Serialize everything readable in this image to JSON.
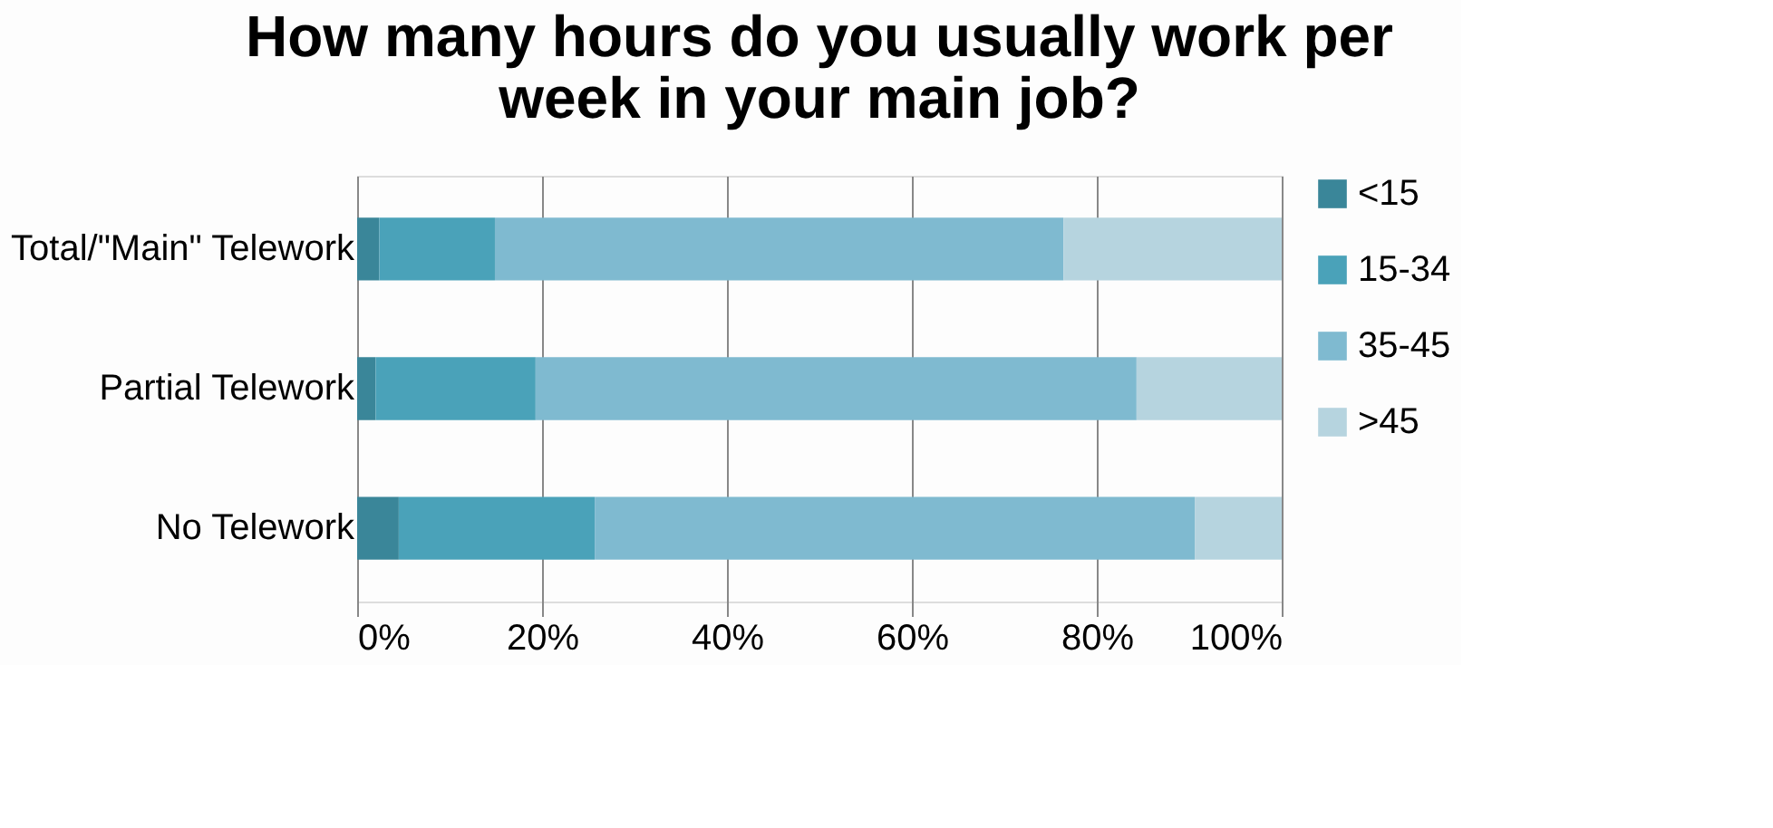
{
  "chart_data": {
    "type": "bar",
    "orientation": "horizontal",
    "stacked": true,
    "title": [
      "How many hours do you usually work per",
      "week in your main job?"
    ],
    "categories": [
      "Total/\"Main\" Telework",
      "Partial Telework",
      "No Telework"
    ],
    "series": [
      {
        "name": "<15",
        "color": "#3a8699",
        "values": [
          2.4,
          2.0,
          4.5
        ]
      },
      {
        "name": "15-34",
        "color": "#4aa2b9",
        "values": [
          12.5,
          17.3,
          21.2
        ]
      },
      {
        "name": "35-45",
        "color": "#7fbad0",
        "values": [
          61.5,
          65.0,
          64.9
        ]
      },
      {
        "name": ">45",
        "color": "#b6d4df",
        "values": [
          23.6,
          15.7,
          9.4
        ]
      }
    ],
    "xlim": [
      0,
      100
    ],
    "xticks": [
      {
        "value": 0,
        "label": "0%"
      },
      {
        "value": 20,
        "label": "20%"
      },
      {
        "value": 40,
        "label": "40%"
      },
      {
        "value": 60,
        "label": "60%"
      },
      {
        "value": 80,
        "label": "80%"
      },
      {
        "value": 100,
        "label": "100%"
      }
    ],
    "grid": "x",
    "legend": "right"
  }
}
